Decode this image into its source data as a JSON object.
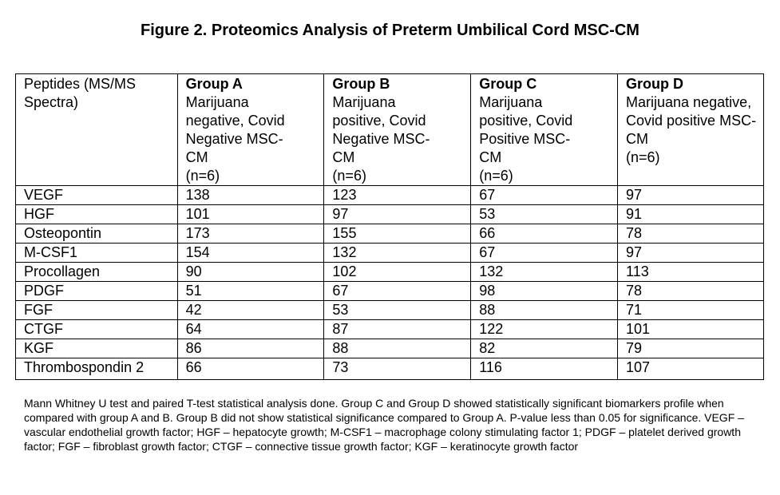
{
  "title": "Figure 2. Proteomics Analysis of Preterm Umbilical Cord MSC-CM",
  "table": {
    "header_first": "Peptides (MS/MS Spectra)",
    "groups": [
      {
        "name": "Group A",
        "desc": "Marijuana negative, Covid Negative MSC-CM",
        "n": "(n=6)"
      },
      {
        "name": "Group B",
        "desc": "Marijuana positive, Covid Negative MSC-CM",
        "n": "(n=6)"
      },
      {
        "name": "Group C",
        "desc": "Marijuana positive, Covid Positive MSC-CM",
        "n": "(n=6)"
      },
      {
        "name": "Group D",
        "desc": "Marijuana negative, Covid positive MSC-CM",
        "n": "(n=6)"
      }
    ],
    "rows": [
      [
        "VEGF",
        "138",
        "123",
        "67",
        "97"
      ],
      [
        "HGF",
        "101",
        "97",
        "53",
        "91"
      ],
      [
        "Osteopontin",
        "173",
        "155",
        "66",
        "78"
      ],
      [
        "M-CSF1",
        "154",
        "132",
        "67",
        "97"
      ],
      [
        "Procollagen",
        "90",
        "102",
        "132",
        "113"
      ],
      [
        "PDGF",
        "51",
        "67",
        "98",
        "78"
      ],
      [
        "FGF",
        "42",
        "53",
        "88",
        "71"
      ],
      [
        "CTGF",
        "64",
        "87",
        "122",
        "101"
      ],
      [
        "KGF",
        "86",
        "88",
        "82",
        "79"
      ],
      [
        "Thrombospondin 2",
        "66",
        "73",
        "116",
        "107"
      ]
    ]
  },
  "note": "Mann Whitney U test and paired T-test statistical analysis done. Group C and Group D showed statistically significant biomarkers profile when compared with group A and B. Group B did not show statistical significance compared to Group A. P-value less than 0.05 for significance. VEGF – vascular endothelial growth factor; HGF – hepatocyte growth; M-CSF1 – macrophage colony stimulating factor 1; PDGF – platelet derived growth factor; FGF – fibroblast growth factor; CTGF – connective tissue growth factor; KGF – keratinocyte growth factor"
}
